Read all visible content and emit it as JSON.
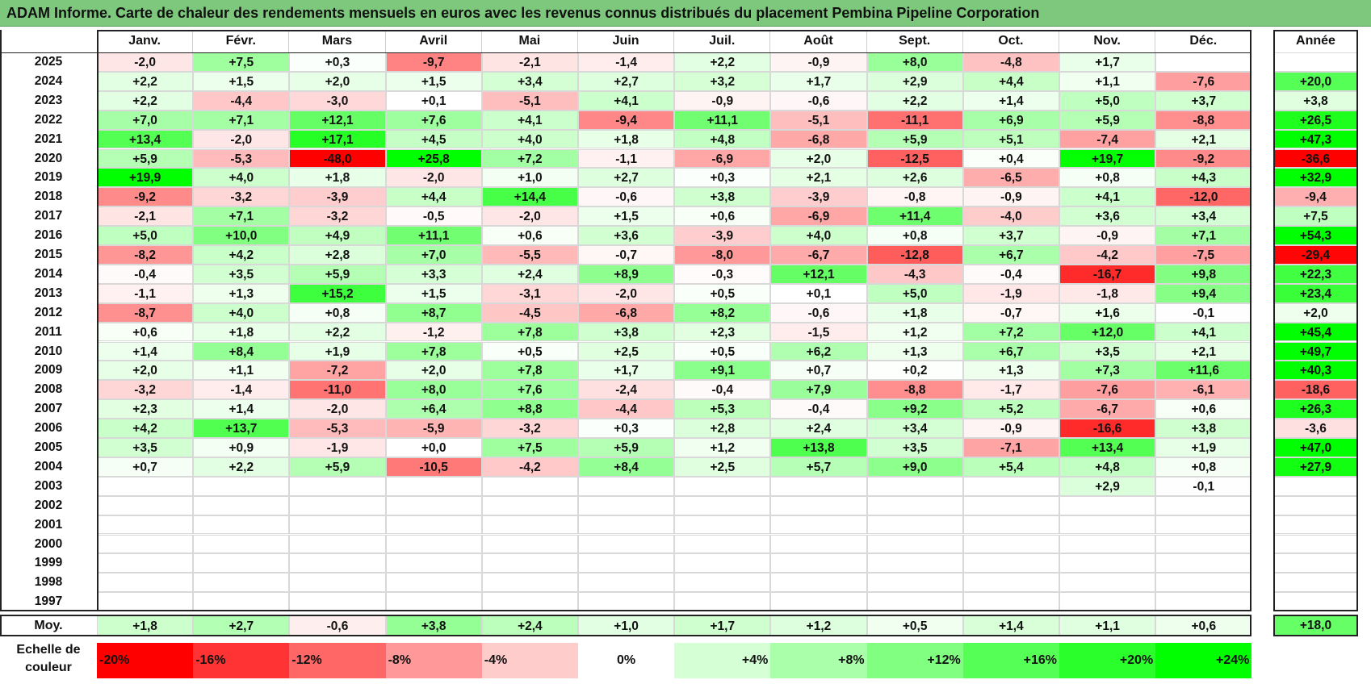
{
  "title": "ADAM Informe. Carte de chaleur des rendements mensuels en euros avec les revenus connus distribués du placement Pembina Pipeline Corporation",
  "chart_data": {
    "type": "heatmap",
    "columns": [
      "Janv.",
      "Févr.",
      "Mars",
      "Avril",
      "Mai",
      "Juin",
      "Juil.",
      "Août",
      "Sept.",
      "Oct.",
      "Nov.",
      "Déc."
    ],
    "year_header": "Année",
    "rows": [
      {
        "year": "2025",
        "months": [
          "-2,0",
          "+7,5",
          "+0,3",
          "-9,7",
          "-2,1",
          "-1,4",
          "+2,2",
          "-0,9",
          "+8,0",
          "-4,8",
          "+1,7",
          ""
        ],
        "annual": ""
      },
      {
        "year": "2024",
        "months": [
          "+2,2",
          "+1,5",
          "+2,0",
          "+1,5",
          "+3,4",
          "+2,7",
          "+3,2",
          "+1,7",
          "+2,9",
          "+4,4",
          "+1,1",
          "-7,6"
        ],
        "annual": "+20,0"
      },
      {
        "year": "2023",
        "months": [
          "+2,2",
          "-4,4",
          "-3,0",
          "+0,1",
          "-5,1",
          "+4,1",
          "-0,9",
          "-0,6",
          "+2,2",
          "+1,4",
          "+5,0",
          "+3,7"
        ],
        "annual": "+3,8"
      },
      {
        "year": "2022",
        "months": [
          "+7,0",
          "+7,1",
          "+12,1",
          "+7,6",
          "+4,1",
          "-9,4",
          "+11,1",
          "-5,1",
          "-11,1",
          "+6,9",
          "+5,9",
          "-8,8"
        ],
        "annual": "+26,5"
      },
      {
        "year": "2021",
        "months": [
          "+13,4",
          "-2,0",
          "+17,1",
          "+4,5",
          "+4,0",
          "+1,8",
          "+4,8",
          "-6,8",
          "+5,9",
          "+5,1",
          "-7,4",
          "+2,1"
        ],
        "annual": "+47,3"
      },
      {
        "year": "2020",
        "months": [
          "+5,9",
          "-5,3",
          "-48,0",
          "+25,8",
          "+7,2",
          "-1,1",
          "-6,9",
          "+2,0",
          "-12,5",
          "+0,4",
          "+19,7",
          "-9,2"
        ],
        "annual": "-36,6"
      },
      {
        "year": "2019",
        "months": [
          "+19,9",
          "+4,0",
          "+1,8",
          "-2,0",
          "+1,0",
          "+2,7",
          "+0,3",
          "+2,1",
          "+2,6",
          "-6,5",
          "+0,8",
          "+4,3"
        ],
        "annual": "+32,9"
      },
      {
        "year": "2018",
        "months": [
          "-9,2",
          "-3,2",
          "-3,9",
          "+4,4",
          "+14,4",
          "-0,6",
          "+3,8",
          "-3,9",
          "-0,8",
          "-0,9",
          "+4,1",
          "-12,0"
        ],
        "annual": "-9,4"
      },
      {
        "year": "2017",
        "months": [
          "-2,1",
          "+7,1",
          "-3,2",
          "-0,5",
          "-2,0",
          "+1,5",
          "+0,6",
          "-6,9",
          "+11,4",
          "-4,0",
          "+3,6",
          "+3,4"
        ],
        "annual": "+7,5"
      },
      {
        "year": "2016",
        "months": [
          "+5,0",
          "+10,0",
          "+4,9",
          "+11,1",
          "+0,6",
          "+3,6",
          "-3,9",
          "+4,0",
          "+0,8",
          "+3,7",
          "-0,9",
          "+7,1"
        ],
        "annual": "+54,3"
      },
      {
        "year": "2015",
        "months": [
          "-8,2",
          "+4,2",
          "+2,8",
          "+7,0",
          "-5,5",
          "-0,7",
          "-8,0",
          "-6,7",
          "-12,8",
          "+6,7",
          "-4,2",
          "-7,5"
        ],
        "annual": "-29,4"
      },
      {
        "year": "2014",
        "months": [
          "-0,4",
          "+3,5",
          "+5,9",
          "+3,3",
          "+2,4",
          "+8,9",
          "-0,3",
          "+12,1",
          "-4,3",
          "-0,4",
          "-16,7",
          "+9,8"
        ],
        "annual": "+22,3"
      },
      {
        "year": "2013",
        "months": [
          "-1,1",
          "+1,3",
          "+15,2",
          "+1,5",
          "-3,1",
          "-2,0",
          "+0,5",
          "+0,1",
          "+5,0",
          "-1,9",
          "-1,8",
          "+9,4"
        ],
        "annual": "+23,4"
      },
      {
        "year": "2012",
        "months": [
          "-8,7",
          "+4,0",
          "+0,8",
          "+8,7",
          "-4,5",
          "-6,8",
          "+8,2",
          "-0,6",
          "+1,8",
          "-0,7",
          "+1,6",
          "-0,1"
        ],
        "annual": "+2,0"
      },
      {
        "year": "2011",
        "months": [
          "+0,6",
          "+1,8",
          "+2,2",
          "-1,2",
          "+7,8",
          "+3,8",
          "+2,3",
          "-1,5",
          "+1,2",
          "+7,2",
          "+12,0",
          "+4,1"
        ],
        "annual": "+45,4"
      },
      {
        "year": "2010",
        "months": [
          "+1,4",
          "+8,4",
          "+1,9",
          "+7,8",
          "+0,5",
          "+2,5",
          "+0,5",
          "+6,2",
          "+1,3",
          "+6,7",
          "+3,5",
          "+2,1"
        ],
        "annual": "+49,7"
      },
      {
        "year": "2009",
        "months": [
          "+2,0",
          "+1,1",
          "-7,2",
          "+2,0",
          "+7,8",
          "+1,7",
          "+9,1",
          "+0,7",
          "+0,2",
          "+1,3",
          "+7,3",
          "+11,6"
        ],
        "annual": "+40,3"
      },
      {
        "year": "2008",
        "months": [
          "-3,2",
          "-1,4",
          "-11,0",
          "+8,0",
          "+7,6",
          "-2,4",
          "-0,4",
          "+7,9",
          "-8,8",
          "-1,7",
          "-7,6",
          "-6,1"
        ],
        "annual": "-18,6"
      },
      {
        "year": "2007",
        "months": [
          "+2,3",
          "+1,4",
          "-2,0",
          "+6,4",
          "+8,8",
          "-4,4",
          "+5,3",
          "-0,4",
          "+9,2",
          "+5,2",
          "-6,7",
          "+0,6"
        ],
        "annual": "+26,3"
      },
      {
        "year": "2006",
        "months": [
          "+4,2",
          "+13,7",
          "-5,3",
          "-5,9",
          "-3,2",
          "+0,3",
          "+2,8",
          "+2,4",
          "+3,4",
          "-0,9",
          "-16,6",
          "+3,8"
        ],
        "annual": "-3,6"
      },
      {
        "year": "2005",
        "months": [
          "+3,5",
          "+0,9",
          "-1,9",
          "+0,0",
          "+7,5",
          "+5,9",
          "+1,2",
          "+13,8",
          "+3,5",
          "-7,1",
          "+13,4",
          "+1,9"
        ],
        "annual": "+47,0"
      },
      {
        "year": "2004",
        "months": [
          "+0,7",
          "+2,2",
          "+5,9",
          "-10,5",
          "-4,2",
          "+8,4",
          "+2,5",
          "+5,7",
          "+9,0",
          "+5,4",
          "+4,8",
          "+0,8"
        ],
        "annual": "+27,9"
      },
      {
        "year": "2003",
        "months": [
          "",
          "",
          "",
          "",
          "",
          "",
          "",
          "",
          "",
          "",
          "+2,9",
          "-0,1"
        ],
        "annual": ""
      },
      {
        "year": "2002",
        "months": [
          "",
          "",
          "",
          "",
          "",
          "",
          "",
          "",
          "",
          "",
          "",
          ""
        ],
        "annual": ""
      },
      {
        "year": "2001",
        "months": [
          "",
          "",
          "",
          "",
          "",
          "",
          "",
          "",
          "",
          "",
          "",
          ""
        ],
        "annual": ""
      },
      {
        "year": "2000",
        "months": [
          "",
          "",
          "",
          "",
          "",
          "",
          "",
          "",
          "",
          "",
          "",
          ""
        ],
        "annual": ""
      },
      {
        "year": "1999",
        "months": [
          "",
          "",
          "",
          "",
          "",
          "",
          "",
          "",
          "",
          "",
          "",
          ""
        ],
        "annual": ""
      },
      {
        "year": "1998",
        "months": [
          "",
          "",
          "",
          "",
          "",
          "",
          "",
          "",
          "",
          "",
          "",
          ""
        ],
        "annual": ""
      },
      {
        "year": "1997",
        "months": [
          "",
          "",
          "",
          "",
          "",
          "",
          "",
          "",
          "",
          "",
          "",
          ""
        ],
        "annual": ""
      }
    ],
    "average": {
      "label": "Moy.",
      "months": [
        "+1,8",
        "+2,7",
        "-0,6",
        "+3,8",
        "+2,4",
        "+1,0",
        "+1,7",
        "+1,2",
        "+0,5",
        "+1,4",
        "+1,1",
        "+0,6"
      ],
      "annual": "+18,0"
    },
    "color_scale": {
      "label_line1": "Echelle de",
      "label_line2": "couleur",
      "steps": [
        "-20%",
        "-16%",
        "-12%",
        "-8%",
        "-4%",
        "0%",
        "+4%",
        "+8%",
        "+12%",
        "+16%",
        "+20%",
        "+24%"
      ]
    },
    "colors": {
      "negative_max": "#ff0000",
      "neutral": "#ffffff",
      "positive_max": "#00ff00",
      "title_bg": "#7ec87e"
    }
  }
}
